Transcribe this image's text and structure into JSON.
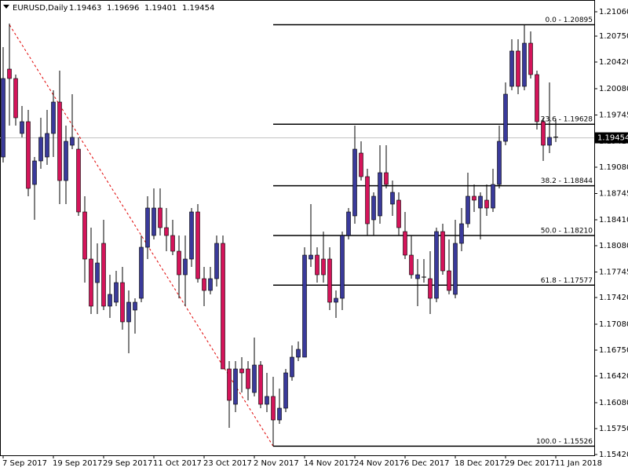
{
  "chart_data": {
    "type": "candlestick",
    "symbol": "EURUSD,Daily",
    "up_color": "#3a3a9a",
    "down_color": "#d4145a",
    "categories": [
      "7 Sep 2017",
      null,
      null,
      null,
      null,
      null,
      null,
      null,
      "19 Sep 2017",
      null,
      null,
      null,
      null,
      null,
      null,
      null,
      "29 Sep 2017",
      null,
      null,
      null,
      null,
      null,
      null,
      null,
      "11 Oct 2017",
      null,
      null,
      null,
      null,
      null,
      null,
      null,
      "23 Oct 2017",
      null,
      null,
      null,
      null,
      null,
      null,
      null,
      "2 Nov 2017",
      null,
      null,
      null,
      null,
      null,
      null,
      null,
      "14 Nov 2017",
      null,
      null,
      null,
      null,
      null,
      null,
      null,
      "24 Nov 2017",
      null,
      null,
      null,
      null,
      null,
      null,
      null,
      "6 Dec 2017",
      null,
      null,
      null,
      null,
      null,
      null,
      null,
      "18 Dec 2017",
      null,
      null,
      null,
      null,
      null,
      null,
      null,
      "29 Dec 2017",
      null,
      null,
      null,
      null,
      null,
      null,
      null,
      "11 Jan 2018"
    ],
    "open": [
      1.1921,
      1.2033,
      1.2021,
      1.1951,
      1.1966,
      1.1886,
      1.1916,
      1.1921,
      1.1951,
      1.1991,
      1.1891,
      1.1936,
      1.1931,
      1.1851,
      1.1791,
      1.1761,
      1.1811,
      1.1731,
      1.1736,
      1.1761,
      1.1711,
      1.1726,
      1.1741,
      1.1806,
      1.1821,
      1.1856,
      1.1831,
      1.1821,
      1.1801,
      1.1771,
      1.1791,
      1.1851,
      1.1766,
      1.1751,
      1.1766,
      1.1811,
      1.1651,
      1.1606,
      1.1651,
      1.1651,
      1.1621,
      1.1656,
      1.1606,
      1.1616,
      1.1586,
      1.1601,
      1.1641,
      1.1666,
      1.1666,
      1.1791,
      1.1796,
      1.1791,
      1.1791,
      1.1736,
      1.1741,
      1.1821,
      1.1846,
      1.1926,
      1.1896,
      1.1841,
      1.1846,
      1.1901,
      1.1861,
      1.1866,
      1.1826,
      1.1796,
      1.1766,
      1.1768,
      1.1766,
      1.1741,
      1.1826,
      1.1776,
      1.1746,
      1.1811,
      1.1836,
      1.1871,
      1.1856,
      1.1866,
      1.1856,
      1.1886,
      1.1941,
      1.2011,
      1.2056,
      1.2011,
      1.2066,
      1.2026,
      1.1966,
      1.1936,
      1.19463
    ],
    "high": [
      1.2061,
      1.2091,
      1.2026,
      1.1986,
      1.1981,
      1.1921,
      1.1971,
      1.1981,
      1.2006,
      1.2031,
      1.1961,
      1.2001,
      1.1946,
      1.1871,
      1.1831,
      1.1811,
      1.1841,
      1.1771,
      1.1776,
      1.1781,
      1.1751,
      1.1741,
      1.1821,
      1.1871,
      1.1881,
      1.1881,
      1.1856,
      1.1841,
      1.1821,
      1.1821,
      1.1856,
      1.1861,
      1.1781,
      1.1781,
      1.1821,
      1.1821,
      1.1661,
      1.1661,
      1.1666,
      1.1661,
      1.1691,
      1.1661,
      1.1646,
      1.1641,
      1.1626,
      1.1651,
      1.1681,
      1.1686,
      1.1806,
      1.1861,
      1.1806,
      1.1826,
      1.1806,
      1.1751,
      1.1826,
      1.1856,
      1.1961,
      1.1941,
      1.1906,
      1.1876,
      1.1936,
      1.1936,
      1.1891,
      1.1876,
      1.1851,
      1.1821,
      1.1791,
      1.1791,
      1.1801,
      1.1831,
      1.1836,
      1.1816,
      1.1841,
      1.1856,
      1.1901,
      1.1886,
      1.1876,
      1.1886,
      1.1906,
      1.1961,
      1.2016,
      1.2071,
      1.2071,
      1.20895,
      1.2081,
      1.2031,
      1.1971,
      1.2016,
      1.19696
    ],
    "low": [
      1.1914,
      1.1961,
      1.1961,
      1.1946,
      1.1871,
      1.1841,
      1.1906,
      1.1911,
      1.1921,
      1.1861,
      1.1861,
      1.1931,
      1.1846,
      1.1761,
      1.1721,
      1.1721,
      1.1726,
      1.1716,
      1.1731,
      1.1701,
      1.1671,
      1.1696,
      1.1736,
      1.1791,
      1.1816,
      1.1821,
      1.1801,
      1.1796,
      1.1741,
      1.1731,
      1.1781,
      1.1761,
      1.1731,
      1.1746,
      1.1756,
      1.1651,
      1.1576,
      1.1596,
      1.1621,
      1.1611,
      1.1616,
      1.1601,
      1.1596,
      1.15526,
      1.1581,
      1.1596,
      1.1636,
      1.1661,
      1.1666,
      1.1781,
      1.1761,
      1.1761,
      1.1726,
      1.1716,
      1.1726,
      1.1816,
      1.1836,
      1.1891,
      1.1821,
      1.1821,
      1.1836,
      1.1881,
      1.1846,
      1.1821,
      1.1791,
      1.1766,
      1.1731,
      1.1761,
      1.1721,
      1.1736,
      1.1771,
      1.1746,
      1.1741,
      1.1801,
      1.1831,
      1.1851,
      1.1816,
      1.1846,
      1.1851,
      1.1881,
      1.1936,
      1.2006,
      1.2001,
      1.2006,
      1.2021,
      1.1956,
      1.1916,
      1.1926,
      1.19401
    ],
    "close": [
      1.2021,
      1.2021,
      1.1971,
      1.1966,
      1.1881,
      1.1916,
      1.1946,
      1.1951,
      1.1991,
      1.1891,
      1.1941,
      1.1946,
      1.1851,
      1.1791,
      1.1731,
      1.1786,
      1.1731,
      1.1746,
      1.1761,
      1.1711,
      1.1736,
      1.1736,
      1.1806,
      1.1856,
      1.1856,
      1.1831,
      1.1821,
      1.1801,
      1.1771,
      1.1791,
      1.1851,
      1.1766,
      1.1751,
      1.1766,
      1.1811,
      1.1651,
      1.1611,
      1.1651,
      1.1646,
      1.1626,
      1.1656,
      1.1606,
      1.1616,
      1.1586,
      1.1601,
      1.1646,
      1.1666,
      1.1676,
      1.1796,
      1.1796,
      1.1771,
      1.1771,
      1.1736,
      1.1741,
      1.1821,
      1.1851,
      1.1931,
      1.1896,
      1.1836,
      1.1871,
      1.1901,
      1.1886,
      1.1876,
      1.1831,
      1.1796,
      1.1771,
      1.1771,
      1.1769,
      1.1741,
      1.1826,
      1.1776,
      1.1751,
      1.1811,
      1.1836,
      1.1871,
      1.1866,
      1.1871,
      1.1856,
      1.1886,
      1.1941,
      1.2001,
      1.2056,
      1.2011,
      1.2066,
      1.2026,
      1.1966,
      1.1936,
      1.1946,
      1.19454
    ],
    "ylim": [
      1.1541,
      1.2121
    ],
    "yticks": [
      {
        "value": 1.2106,
        "label": "1.21060"
      },
      {
        "value": 1.2075,
        "label": "1.20750"
      },
      {
        "value": 1.2042,
        "label": "1.20420"
      },
      {
        "value": 1.2008,
        "label": "1.20080"
      },
      1.19745,
      {
        "value": 1.1941,
        "label": "1.19410"
      },
      {
        "value": 1.1908,
        "label": "1.19080"
      },
      1.18745,
      {
        "value": 1.1841,
        "label": "1.18410"
      },
      {
        "value": 1.1808,
        "label": "1.18080"
      },
      1.17745,
      {
        "value": 1.1742,
        "label": "1.17420"
      },
      {
        "value": 1.1708,
        "label": "1.17080"
      },
      {
        "value": 1.1675,
        "label": "1.16750"
      },
      {
        "value": 1.1642,
        "label": "1.16420"
      },
      {
        "value": 1.1608,
        "label": "1.16080"
      },
      {
        "value": 1.1575,
        "label": "1.15750"
      },
      {
        "value": 1.1542,
        "label": "1.15420"
      }
    ],
    "fibonacci": [
      {
        "value": 1.20895,
        "label": "0.0 - 1.20895"
      },
      {
        "value": 1.19628,
        "label": "23.6 - 1.19628"
      },
      {
        "value": 1.18844,
        "label": "38.2 - 1.18844"
      },
      {
        "value": 1.1821,
        "label": "50.0 - 1.18210"
      },
      {
        "value": 1.17577,
        "label": "61.8 - 1.17577"
      },
      {
        "value": 1.15526,
        "label": "100.0 - 1.15526"
      }
    ]
  }
}
